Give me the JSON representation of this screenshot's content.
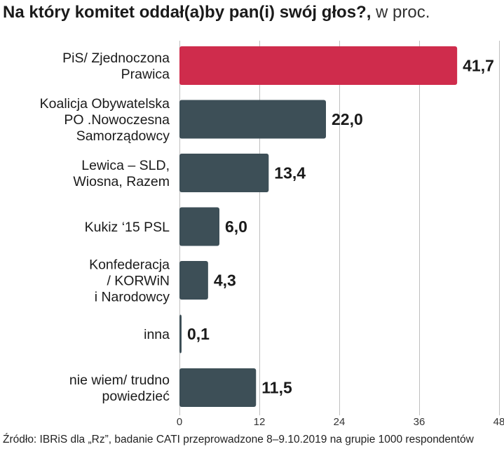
{
  "header": {
    "title": "Na który komitet oddał(a)by pan(i) swój głos?,",
    "unit": " w proc."
  },
  "chart_data": {
    "type": "bar",
    "orientation": "horizontal",
    "categories": [
      [
        "PiS/ Zjednoczona",
        "Prawica"
      ],
      [
        "Koalicja Obywatelska",
        "PO .Nowoczesna",
        "Samorządowcy"
      ],
      [
        "Lewica – SLD,",
        "Wiosna, Razem"
      ],
      [
        "Kukiz ‘15 PSL"
      ],
      [
        "Konfederacja",
        "/ KORWiN",
        "i Narodowcy"
      ],
      [
        "inna"
      ],
      [
        "nie wiem/ trudno",
        "powiedzieć"
      ]
    ],
    "values": [
      41.7,
      22.0,
      13.4,
      6.0,
      4.3,
      0.1,
      11.5
    ],
    "value_labels": [
      "41,7",
      "22,0",
      "13,4",
      "6,0",
      "4,3",
      "0,1",
      "11,5"
    ],
    "bar_colors": [
      "#cf2c4c",
      "#3d4f57",
      "#3d4f57",
      "#3d4f57",
      "#3d4f57",
      "#3d4f57",
      "#3d4f57"
    ],
    "xlim": [
      0,
      48
    ],
    "xticks": [
      0,
      12,
      24,
      36,
      48
    ],
    "grid": true,
    "grid_color": "#bfbfbf"
  },
  "footer": {
    "source": "Źródło: IBRiS dla „Rz”, badanie CATI przeprowadzone  8–9.10.2019 na grupie 1000 respondentów"
  }
}
